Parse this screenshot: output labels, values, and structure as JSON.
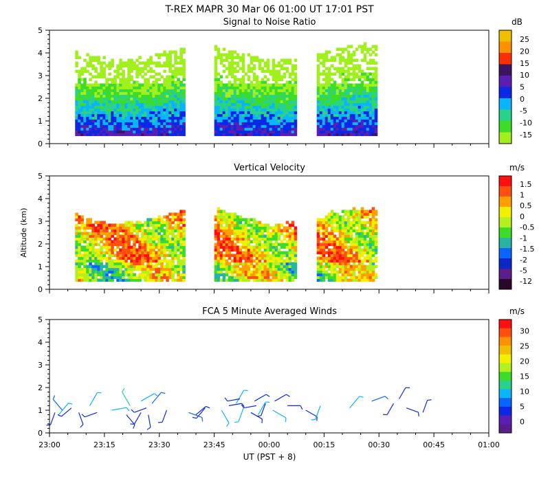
{
  "header": {
    "title": "T-REX  MAPR 30 Mar 06  01:00 UT  17:01  PST"
  },
  "colors": {
    "missing": "#ffffff",
    "axis": "#000000"
  },
  "x_axis": {
    "label": "UT  (PST + 8)",
    "ticks": [
      "23:00",
      "23:15",
      "23:30",
      "23:45",
      "00:00",
      "00:15",
      "00:30",
      "00:45",
      "01:00"
    ],
    "range_minutes": [
      0,
      120
    ]
  },
  "y_axis": {
    "label": "Altitude (km)",
    "ticks": [
      "0",
      "1",
      "2",
      "3",
      "4",
      "5"
    ],
    "range_km": [
      0,
      5
    ]
  },
  "chart_data": [
    {
      "type": "heatmap",
      "title": "Signal to Noise Ratio",
      "unit": "dB",
      "xlabel": "UT  (PST + 8)",
      "ylabel": "Altitude (km)",
      "xlim_minutes": [
        0,
        120
      ],
      "ylim": [
        0,
        5
      ],
      "data_segments_minutes": [
        [
          7,
          37
        ],
        [
          45,
          67
        ],
        [
          73,
          89
        ]
      ],
      "colorbar_labels": [
        "25",
        "20",
        "15",
        "10",
        "5",
        "0",
        "-5",
        "-10",
        "-15"
      ],
      "colorbar_colors": [
        "#f0c000",
        "#ff9000",
        "#ff3000",
        "#3c1460",
        "#5a1eb4",
        "#0a28e6",
        "#0ab4ff",
        "#28d28c",
        "#3cdc28",
        "#a0f01e"
      ],
      "summary": "Strongest signal (0 to 5 dB) below 1 km; weaker returns (-10 to -15 dB) up to about 4 km"
    },
    {
      "type": "heatmap",
      "title": "Vertical Velocity",
      "unit": "m/s",
      "xlabel": "UT  (PST + 8)",
      "ylabel": "Altitude (km)",
      "xlim_minutes": [
        0,
        120
      ],
      "ylim": [
        0,
        5
      ],
      "data_segments_minutes": [
        [
          7,
          37
        ],
        [
          45,
          67
        ],
        [
          73,
          89
        ]
      ],
      "colorbar_labels": [
        "1.5",
        "1",
        "0.5",
        "0",
        "-0.5",
        "-1",
        "-1.5",
        "-2",
        "-5",
        "-12"
      ],
      "colorbar_colors": [
        "#ff1010",
        "#ff5010",
        "#ffa000",
        "#f0f000",
        "#b4f01e",
        "#3cdc28",
        "#28b4a0",
        "#0a64ff",
        "#0a28c8",
        "#5a1e8c",
        "#280a28"
      ],
      "summary": "Mostly weak updrafts (0 to 1.5 m/s) below 2.5 km with patches of downdraft near 1 km"
    },
    {
      "type": "scatter",
      "title": "FCA 5 Minute Averaged Winds",
      "unit": "m/s",
      "xlabel": "UT  (PST + 8)",
      "ylabel": "Altitude (km)",
      "xlim_minutes": [
        0,
        120
      ],
      "ylim": [
        0,
        5
      ],
      "colorbar_labels": [
        "30",
        "25",
        "20",
        "15",
        "10",
        "5",
        "0"
      ],
      "colorbar_colors": [
        "#ff1010",
        "#ff5010",
        "#ff9000",
        "#f0c000",
        "#f0f000",
        "#b4f01e",
        "#3cdc28",
        "#28d28c",
        "#0ab4ff",
        "#0a64ff",
        "#0a28e6",
        "#5a1eb4",
        "#5a1e8c"
      ],
      "series": [
        {
          "name": "wind",
          "x": [
            1.5,
            2.5,
            3.5,
            6,
            8,
            11,
            13,
            17,
            21,
            22,
            25,
            25,
            26.5,
            27,
            28,
            32,
            38,
            40,
            42.5,
            47,
            49,
            51,
            52,
            53,
            55,
            56,
            56.5,
            57,
            59,
            61,
            61.5,
            65,
            70,
            74,
            82,
            88,
            94,
            95.5,
            97.5,
            102
          ],
          "y": [
            0.9,
            0.8,
            1.0,
            1.1,
            0.9,
            1.2,
            0.9,
            1.0,
            0.8,
            1.2,
            0.9,
            1.4,
            1.1,
            0.8,
            1.3,
            1.0,
            0.9,
            0.8,
            1.1,
            1.0,
            1.2,
            1.3,
            1.5,
            1.1,
            0.9,
            1.4,
            1.2,
            0.8,
            1.3,
            1.0,
            1.4,
            1.2,
            1.0,
            1.2,
            1.1,
            1.4,
            1.3,
            1.5,
            1.1,
            0.9
          ],
          "speed": [
            5,
            10,
            8,
            5,
            4,
            10,
            5,
            10,
            5,
            12,
            6,
            10,
            5,
            4,
            8,
            4,
            8,
            5,
            6,
            9,
            5,
            10,
            4,
            9,
            5,
            6,
            4,
            9,
            5,
            10,
            6,
            5,
            5,
            9,
            10,
            8,
            5,
            5,
            4,
            5
          ],
          "direction_deg": [
            200,
            40,
            320,
            230,
            160,
            30,
            250,
            80,
            140,
            330,
            210,
            60,
            250,
            170,
            40,
            200,
            110,
            50,
            220,
            150,
            80,
            30,
            260,
            200,
            120,
            60,
            260,
            30,
            200,
            120,
            60,
            90,
            120,
            200,
            40,
            70,
            210,
            30,
            110,
            20
          ]
        }
      ],
      "summary": "Wind barbs concentrated between 0.5 and 2 km altitude"
    }
  ]
}
